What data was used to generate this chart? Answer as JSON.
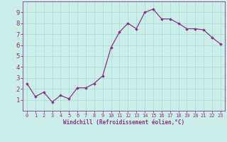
{
  "x": [
    0,
    1,
    2,
    3,
    4,
    5,
    6,
    7,
    8,
    9,
    10,
    11,
    12,
    13,
    14,
    15,
    16,
    17,
    18,
    19,
    20,
    21,
    22,
    23
  ],
  "y": [
    2.5,
    1.3,
    1.7,
    0.8,
    1.4,
    1.1,
    2.1,
    2.1,
    2.5,
    3.2,
    5.8,
    7.2,
    8.0,
    7.5,
    9.0,
    9.3,
    8.4,
    8.4,
    8.0,
    7.5,
    7.5,
    7.4,
    6.7,
    6.1
  ],
  "line_color": "#883388",
  "marker": "D",
  "marker_size": 1.8,
  "line_width": 0.9,
  "bg_color": "#cceee8",
  "grid_color": "#aadddd",
  "xlabel": "Windchill (Refroidissement éolien,°C)",
  "xlim": [
    -0.5,
    23.5
  ],
  "ylim": [
    0,
    10
  ],
  "xticks": [
    0,
    1,
    2,
    3,
    4,
    5,
    6,
    7,
    8,
    9,
    10,
    11,
    12,
    13,
    14,
    15,
    16,
    17,
    18,
    19,
    20,
    21,
    22,
    23
  ],
  "yticks": [
    1,
    2,
    3,
    4,
    5,
    6,
    7,
    8,
    9
  ],
  "label_color": "#883388",
  "tick_fontsize": 5.0,
  "xlabel_fontsize": 5.5
}
